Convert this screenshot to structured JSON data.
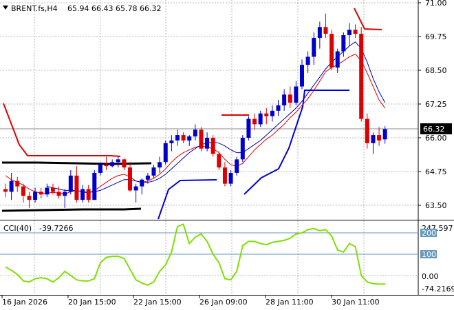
{
  "header": {
    "symbol_timeframe": "BRENT.fs,H4",
    "ohlc": "65.94 66.43 65.78 66.32",
    "arrow_icon": "triangle-down-icon"
  },
  "price_axis": {
    "ticks": [
      "71.00",
      "69.75",
      "68.50",
      "67.25",
      "66.00",
      "64.75",
      "63.50"
    ],
    "current_price": "66.32"
  },
  "cci_panel": {
    "label": "CCI(40)",
    "value": "-39.7266",
    "scale_max": "247.597",
    "scale_min": "-74.2169",
    "levels": [
      "200",
      "100",
      "0.00"
    ]
  },
  "time_axis": {
    "labels": [
      "16 Jan 2026",
      "20 Jan 15:00",
      "22 Jan 15:00",
      "26 Jan 09:00",
      "28 Jan 11:00",
      "30 Jan 11:00"
    ]
  },
  "colors": {
    "bull_candle": "#0000cc",
    "bear_candle": "#dd0000",
    "fast_ma": "#dd0000",
    "slow_ma": "#0000aa",
    "stop_upper": "#dd0000",
    "stop_lower": "#0000dd",
    "channel": "#000000",
    "cci_line": "#7ee000",
    "level_line": "#6699bb",
    "grid": "#b8b8b8"
  },
  "chart_data": [
    {
      "type": "candlestick",
      "symbol": "BRENT.fs",
      "timeframe": "H4",
      "ylim": [
        62.9,
        71.0
      ],
      "x_labels": [
        "16 Jan 2026",
        "20 Jan 15:00",
        "22 Jan 15:00",
        "26 Jan 09:00",
        "28 Jan 11:00",
        "30 Jan 11:00"
      ],
      "candles": [
        [
          64.1,
          64.3,
          63.8,
          64.0
        ],
        [
          64.0,
          64.7,
          63.7,
          64.4
        ],
        [
          64.4,
          64.55,
          64.0,
          64.2
        ],
        [
          64.2,
          64.3,
          63.6,
          63.85
        ],
        [
          63.85,
          64.0,
          63.4,
          63.7
        ],
        [
          63.7,
          64.15,
          63.6,
          64.0
        ],
        [
          64.0,
          64.15,
          63.75,
          63.9
        ],
        [
          63.9,
          64.3,
          63.8,
          64.15
        ],
        [
          64.15,
          64.3,
          63.9,
          64.0
        ],
        [
          64.0,
          64.2,
          63.75,
          63.85
        ],
        [
          63.85,
          64.1,
          63.4,
          64.0
        ],
        [
          64.0,
          64.8,
          63.9,
          64.6
        ],
        [
          64.6,
          64.95,
          63.6,
          63.7
        ],
        [
          63.7,
          64.25,
          63.6,
          64.1
        ],
        [
          64.1,
          64.25,
          63.6,
          63.7
        ],
        [
          63.7,
          64.8,
          63.7,
          64.7
        ],
        [
          64.7,
          65.1,
          64.6,
          65.0
        ],
        [
          65.0,
          65.3,
          64.8,
          64.95
        ],
        [
          64.95,
          65.2,
          64.9,
          65.1
        ],
        [
          65.1,
          65.3,
          64.9,
          65.2
        ],
        [
          65.2,
          65.25,
          64.8,
          64.9
        ],
        [
          64.9,
          65.1,
          64.0,
          64.05
        ],
        [
          64.05,
          64.3,
          63.6,
          64.2
        ],
        [
          64.2,
          64.5,
          63.9,
          64.45
        ],
        [
          64.45,
          64.7,
          64.3,
          64.6
        ],
        [
          64.6,
          65.0,
          64.5,
          64.9
        ],
        [
          64.9,
          65.3,
          64.7,
          65.1
        ],
        [
          65.1,
          65.9,
          65.0,
          65.8
        ],
        [
          65.8,
          66.1,
          65.5,
          65.9
        ],
        [
          65.9,
          66.3,
          65.7,
          66.1
        ],
        [
          66.1,
          66.2,
          65.8,
          65.9
        ],
        [
          65.9,
          66.1,
          65.7,
          66.05
        ],
        [
          66.05,
          66.5,
          65.9,
          66.3
        ],
        [
          66.3,
          66.4,
          65.5,
          65.6
        ],
        [
          65.6,
          66.2,
          65.5,
          66.0
        ],
        [
          66.0,
          66.1,
          65.3,
          65.4
        ],
        [
          65.4,
          65.5,
          64.8,
          64.9
        ],
        [
          64.9,
          65.1,
          64.2,
          64.3
        ],
        [
          64.3,
          64.8,
          64.2,
          64.7
        ],
        [
          64.7,
          65.3,
          64.6,
          65.2
        ],
        [
          65.2,
          66.1,
          65.1,
          66.0
        ],
        [
          66.0,
          66.8,
          65.9,
          66.7
        ],
        [
          66.7,
          66.9,
          66.3,
          66.5
        ],
        [
          66.5,
          67.0,
          66.4,
          66.9
        ],
        [
          66.9,
          67.1,
          66.5,
          66.8
        ],
        [
          66.8,
          67.2,
          66.6,
          67.0
        ],
        [
          67.0,
          67.4,
          66.8,
          67.2
        ],
        [
          67.2,
          67.8,
          67.0,
          67.6
        ],
        [
          67.6,
          67.9,
          67.1,
          67.3
        ],
        [
          67.3,
          68.1,
          67.2,
          67.9
        ],
        [
          67.9,
          68.9,
          67.8,
          68.7
        ],
        [
          68.7,
          69.2,
          68.4,
          69.0
        ],
        [
          69.0,
          69.9,
          68.7,
          69.7
        ],
        [
          69.7,
          70.3,
          69.3,
          70.1
        ],
        [
          70.1,
          70.6,
          69.7,
          69.85
        ],
        [
          69.85,
          70.0,
          68.5,
          68.6
        ],
        [
          68.6,
          69.3,
          68.4,
          69.2
        ],
        [
          69.2,
          69.9,
          69.0,
          69.8
        ],
        [
          69.8,
          70.25,
          69.4,
          70.0
        ],
        [
          70.0,
          70.2,
          69.7,
          69.85
        ],
        [
          69.85,
          70.1,
          66.6,
          66.7
        ],
        [
          66.7,
          66.9,
          65.6,
          65.8
        ],
        [
          65.8,
          66.2,
          65.4,
          66.1
        ],
        [
          66.1,
          66.4,
          65.7,
          65.9
        ],
        [
          65.94,
          66.43,
          65.78,
          66.32
        ]
      ],
      "series": [
        {
          "name": "fast_ma",
          "values": [
            64.6,
            64.45,
            64.35,
            64.25,
            64.1,
            64.0,
            63.95,
            63.95,
            63.98,
            63.95,
            63.92,
            64.0,
            64.05,
            64.0,
            63.95,
            64.05,
            64.2,
            64.35,
            64.5,
            64.6,
            64.65,
            64.55,
            64.4,
            64.35,
            64.4,
            64.5,
            64.65,
            64.85,
            65.1,
            65.3,
            65.45,
            65.55,
            65.65,
            65.7,
            65.65,
            65.6,
            65.45,
            65.2,
            65.0,
            64.95,
            65.05,
            65.3,
            65.55,
            65.75,
            65.95,
            66.1,
            66.3,
            66.5,
            66.75,
            66.95,
            67.2,
            67.45,
            67.75,
            68.1,
            68.45,
            68.6,
            68.7,
            68.85,
            69.0,
            69.1,
            68.85,
            68.4,
            67.9,
            67.4,
            67.1
          ]
        },
        {
          "name": "slow_ma",
          "values": [
            null,
            null,
            null,
            null,
            null,
            null,
            null,
            64.2,
            64.15,
            64.1,
            64.05,
            64.05,
            64.05,
            64.0,
            63.98,
            64.0,
            64.05,
            64.15,
            64.25,
            64.35,
            64.45,
            64.45,
            64.4,
            64.35,
            64.35,
            64.4,
            64.5,
            64.65,
            64.85,
            65.05,
            65.25,
            65.45,
            65.6,
            65.75,
            65.8,
            65.85,
            65.8,
            65.7,
            65.55,
            65.45,
            65.45,
            65.6,
            65.75,
            65.9,
            66.1,
            66.3,
            66.5,
            66.7,
            66.9,
            67.1,
            67.35,
            67.65,
            67.95,
            68.25,
            68.55,
            68.8,
            69.0,
            69.2,
            69.4,
            69.55,
            69.3,
            68.8,
            68.2,
            67.7,
            67.3
          ]
        }
      ]
    },
    {
      "type": "line",
      "name": "CCI(40)",
      "ylim": [
        -74.2169,
        247.597
      ],
      "levels": [
        200,
        100,
        0
      ],
      "values": [
        40,
        25,
        5,
        -25,
        -30,
        -15,
        -10,
        -15,
        -30,
        -10,
        20,
        0,
        -20,
        -25,
        -25,
        -15,
        60,
        85,
        90,
        90,
        80,
        30,
        -20,
        -35,
        -45,
        -30,
        20,
        50,
        110,
        230,
        240,
        150,
        180,
        195,
        160,
        100,
        60,
        -15,
        -20,
        20,
        140,
        160,
        160,
        150,
        145,
        155,
        160,
        165,
        175,
        195,
        200,
        215,
        220,
        210,
        215,
        185,
        120,
        110,
        150,
        135,
        0,
        -30,
        -38,
        -40,
        -39.7266
      ]
    }
  ]
}
